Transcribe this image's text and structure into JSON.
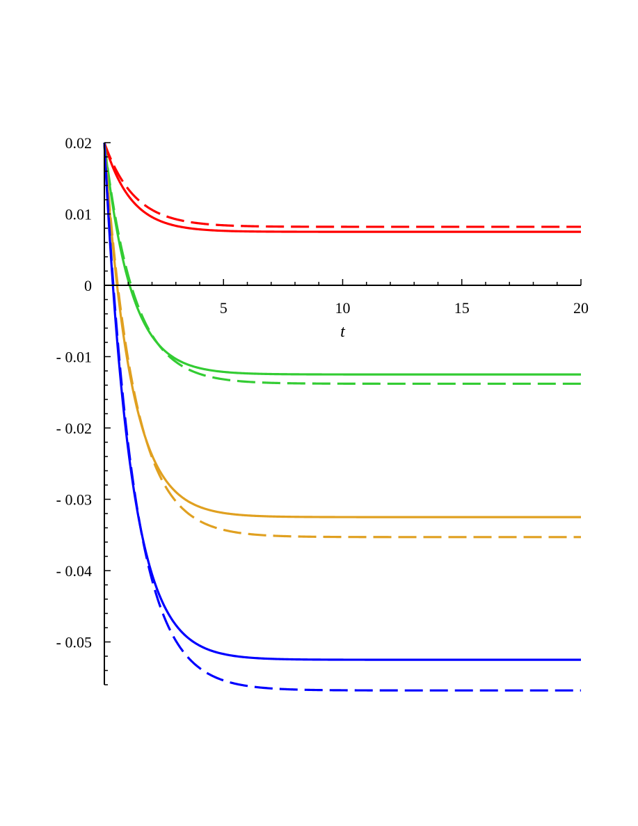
{
  "chart_data": {
    "type": "line",
    "title": "",
    "xlabel": "t",
    "ylabel": "",
    "xlim": [
      0,
      20
    ],
    "ylim": [
      -0.056,
      0.02
    ],
    "grid": false,
    "legend": "none",
    "x_ticks": [
      {
        "value": 5,
        "label": "5"
      },
      {
        "value": 10,
        "label": "10"
      },
      {
        "value": 15,
        "label": "15"
      },
      {
        "value": 20,
        "label": "20"
      }
    ],
    "y_ticks": [
      {
        "value": 0.02,
        "label": "0.02"
      },
      {
        "value": 0.01,
        "label": "0.01"
      },
      {
        "value": 0,
        "label": "0"
      },
      {
        "value": -0.01,
        "label": "- 0.01"
      },
      {
        "value": -0.02,
        "label": "- 0.02"
      },
      {
        "value": -0.03,
        "label": "- 0.03"
      },
      {
        "value": -0.04,
        "label": "- 0.04"
      },
      {
        "value": -0.05,
        "label": "- 0.05"
      }
    ],
    "series": [
      {
        "color": "#ff0000",
        "style": "solid",
        "y0": 0.02,
        "y_end": 0.0075,
        "rate": 0.9
      },
      {
        "color": "#ff0000",
        "style": "dashed",
        "y0": 0.02,
        "y_end": 0.0082,
        "rate": 0.8
      },
      {
        "color": "#33cc33",
        "style": "solid",
        "y0": 0.02,
        "y_end": -0.0125,
        "rate": 0.9
      },
      {
        "color": "#33cc33",
        "style": "dashed",
        "y0": 0.02,
        "y_end": -0.0138,
        "rate": 0.8
      },
      {
        "color": "#e0a020",
        "style": "solid",
        "y0": 0.02,
        "y_end": -0.0325,
        "rate": 0.9
      },
      {
        "color": "#e0a020",
        "style": "dashed",
        "y0": 0.02,
        "y_end": -0.0353,
        "rate": 0.8
      },
      {
        "color": "#0000ff",
        "style": "solid",
        "y0": 0.02,
        "y_end": -0.0525,
        "rate": 0.9
      },
      {
        "color": "#0000ff",
        "style": "dashed",
        "y0": 0.02,
        "y_end": -0.0568,
        "rate": 0.8
      }
    ]
  }
}
